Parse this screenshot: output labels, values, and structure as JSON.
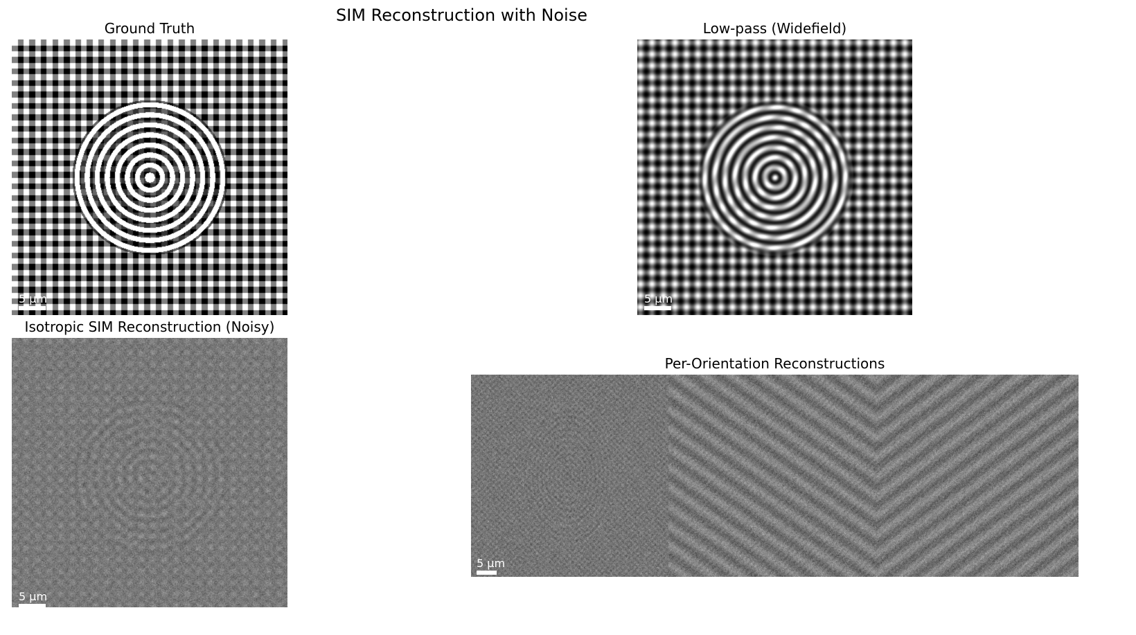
{
  "figure": {
    "title": "SIM Reconstruction with Noise"
  },
  "panels": {
    "ground_truth": {
      "title": "Ground Truth",
      "scalebar_label": "5 µm"
    },
    "lowpass": {
      "title": "Low-pass (Widefield)",
      "scalebar_label": "5 µm"
    },
    "isotropic": {
      "title": "Isotropic SIM Reconstruction (Noisy)",
      "scalebar_label": "5 µm"
    },
    "per_orientation": {
      "title": "Per-Orientation Reconstructions",
      "scalebar_label": "5 µm"
    }
  }
}
